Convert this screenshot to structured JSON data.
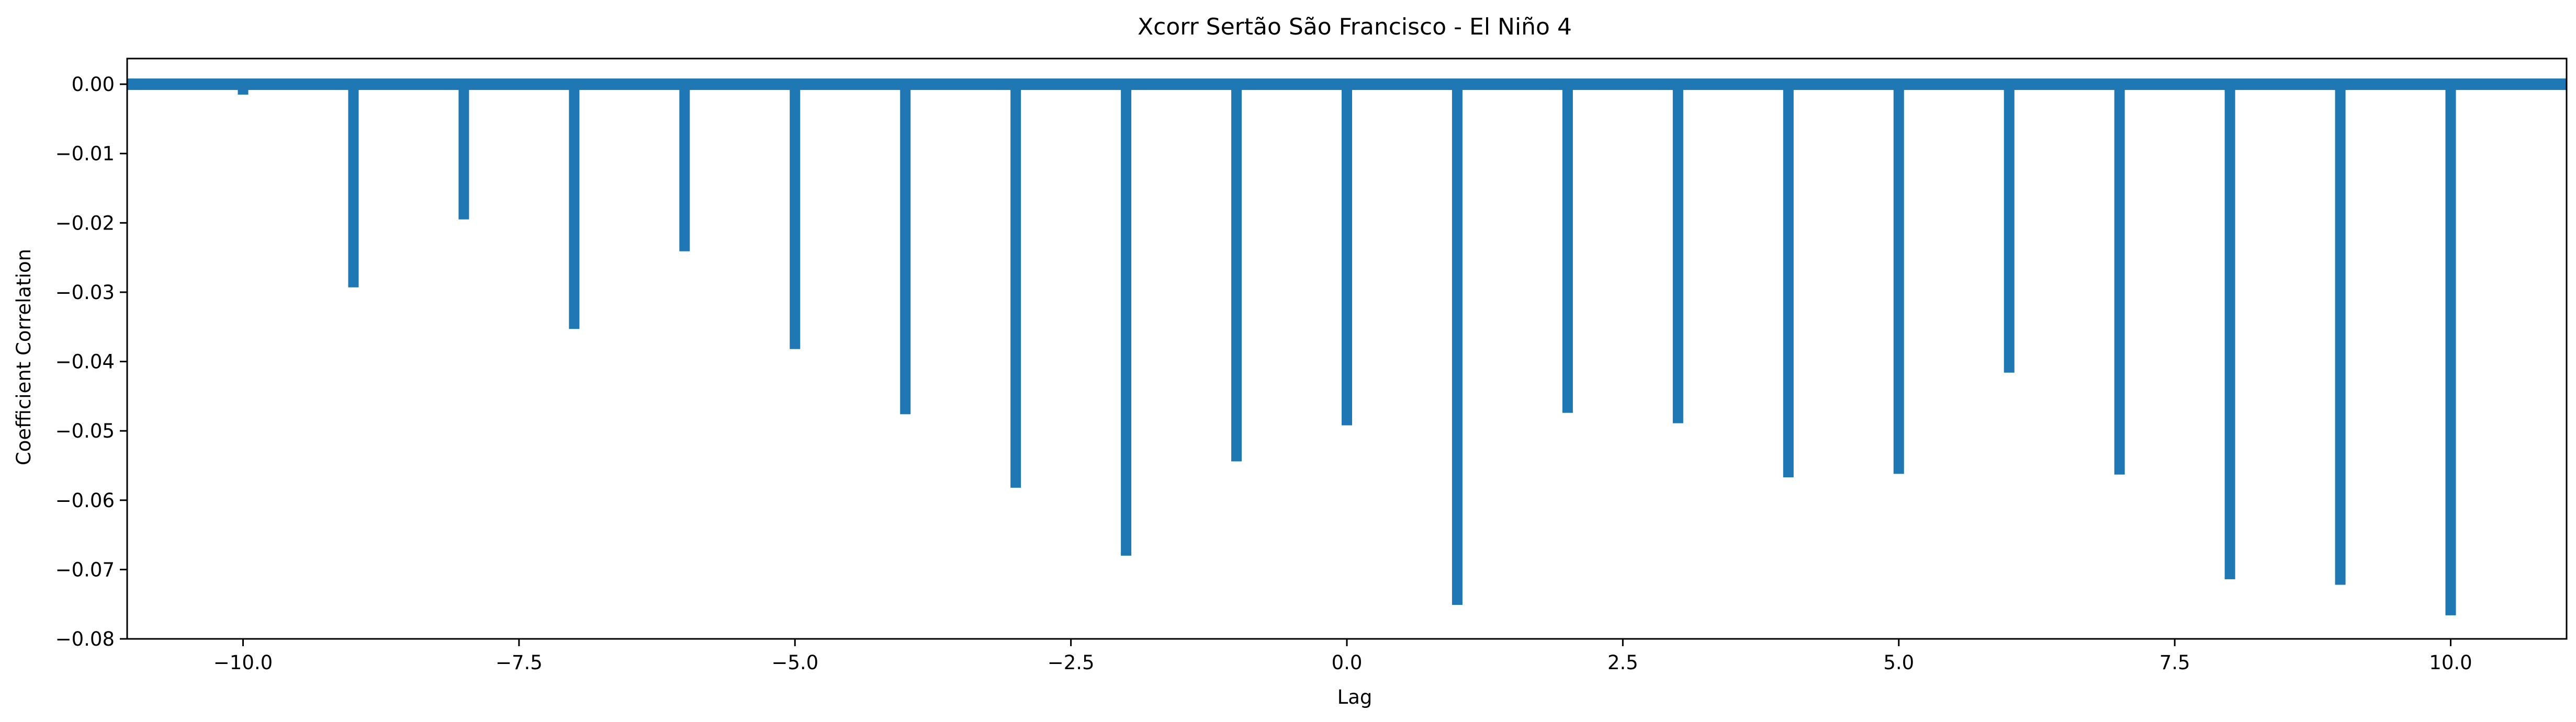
{
  "chart_data": {
    "type": "bar",
    "title": "Xcorr Sertão São Francisco - El Niño 4",
    "xlabel": "Lag",
    "ylabel": "Coefficient Correlation",
    "xlim": [
      -11.05,
      11.05
    ],
    "ylim": [
      -0.08,
      0.0037
    ],
    "x_ticks": [
      -10.0,
      -7.5,
      -5.0,
      -2.5,
      0.0,
      2.5,
      5.0,
      7.5,
      10.0
    ],
    "x_tick_labels": [
      "−10.0",
      "−7.5",
      "−5.0",
      "−2.5",
      "0.0",
      "2.5",
      "5.0",
      "7.5",
      "10.0"
    ],
    "y_ticks": [
      0.0,
      -0.01,
      -0.02,
      -0.03,
      -0.04,
      -0.05,
      -0.06,
      -0.07,
      -0.08
    ],
    "y_tick_labels": [
      "0.00",
      "−0.01",
      "−0.02",
      "−0.03",
      "−0.04",
      "−0.05",
      "−0.06",
      "−0.07",
      "−0.08"
    ],
    "baseline": 0.0,
    "series": [
      {
        "color": "#1f77b4",
        "x": [
          -10,
          -9,
          -8,
          -7,
          -6,
          -5,
          -4,
          -3,
          -2,
          -1,
          0,
          1,
          2,
          3,
          4,
          5,
          6,
          7,
          8,
          9,
          10
        ],
        "values": [
          -0.0015,
          -0.0293,
          -0.0195,
          -0.0353,
          -0.0241,
          -0.0382,
          -0.0476,
          -0.0582,
          -0.068,
          -0.0544,
          -0.0492,
          -0.0751,
          -0.0474,
          -0.0489,
          -0.0567,
          -0.0562,
          -0.0416,
          -0.0563,
          -0.0714,
          -0.0722,
          -0.0766
        ]
      }
    ],
    "grid": false,
    "legend": "none"
  }
}
